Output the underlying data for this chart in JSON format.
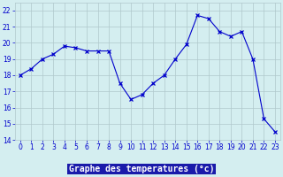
{
  "x": [
    0,
    1,
    2,
    3,
    4,
    5,
    6,
    7,
    8,
    9,
    10,
    11,
    12,
    13,
    14,
    15,
    16,
    17,
    18,
    19,
    20,
    21,
    22,
    23
  ],
  "y": [
    18.0,
    18.4,
    19.0,
    19.3,
    19.8,
    19.7,
    19.5,
    19.5,
    19.5,
    17.5,
    16.5,
    16.8,
    17.5,
    18.0,
    19.0,
    19.9,
    21.7,
    21.5,
    20.7,
    20.4,
    20.7,
    19.0,
    15.3,
    14.5
  ],
  "line_color": "#0000cc",
  "marker": "x",
  "marker_size": 3,
  "bg_color": "#d4eef0",
  "grid_color": "#b0c8cc",
  "xlabel": "Graphe des temperatures (°c)",
  "xlabel_bg": "#1a1aaa",
  "xlabel_color": "#ffffff",
  "xlim": [
    -0.5,
    23.5
  ],
  "ylim": [
    14,
    22.5
  ],
  "yticks": [
    14,
    15,
    16,
    17,
    18,
    19,
    20,
    21,
    22
  ],
  "xticks": [
    0,
    1,
    2,
    3,
    4,
    5,
    6,
    7,
    8,
    9,
    10,
    11,
    12,
    13,
    14,
    15,
    16,
    17,
    18,
    19,
    20,
    21,
    22,
    23
  ],
  "tick_fontsize": 5.5,
  "label_fontsize": 7.0
}
